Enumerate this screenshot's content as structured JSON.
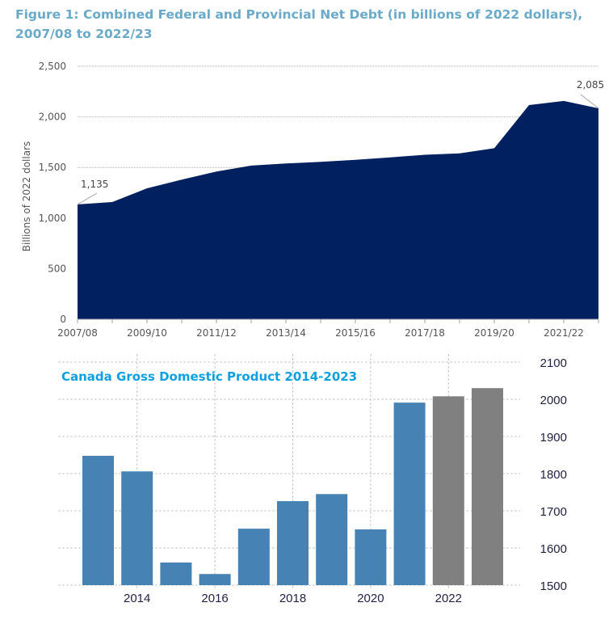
{
  "chart_data": [
    {
      "type": "area",
      "title": "Figure 1: Combined Federal and Provincial Net Debt (in billions of 2022 dollars), 2007/08 to 2022/23",
      "xlabel": "",
      "ylabel": "Billions of 2022 dollars",
      "ylim": [
        0,
        2500
      ],
      "yticks": [
        0,
        500,
        1000,
        1500,
        2000,
        2500
      ],
      "ytick_labels": [
        "0",
        "500",
        "1,000",
        "1,500",
        "2,000",
        "2,500"
      ],
      "x": [
        "2007/08",
        "2008/09",
        "2009/10",
        "2010/11",
        "2011/12",
        "2012/13",
        "2013/14",
        "2014/15",
        "2015/16",
        "2016/17",
        "2017/18",
        "2018/19",
        "2019/20",
        "2020/21",
        "2021/22",
        "2022/23"
      ],
      "xtick_labels": [
        "2007/08",
        "2009/10",
        "2011/12",
        "2013/14",
        "2015/16",
        "2017/18",
        "2019/20",
        "2021/22"
      ],
      "values": [
        1135,
        1158,
        1294,
        1380,
        1460,
        1518,
        1540,
        1555,
        1575,
        1600,
        1625,
        1640,
        1690,
        2117,
        2157,
        2085
      ],
      "annotations": [
        {
          "label": "1,135",
          "x": "2007/08",
          "value": 1135
        },
        {
          "label": "2,085",
          "x": "2022/23",
          "value": 2085
        }
      ],
      "color": "#002060",
      "grid": true
    },
    {
      "type": "bar",
      "title": "Canada Gross Domestic Product 2014-2023",
      "xlabel": "",
      "ylabel": "",
      "ylim": [
        1500,
        2100
      ],
      "yaxis_side": "right",
      "yticks": [
        1500,
        1600,
        1700,
        1800,
        1900,
        2000,
        2100
      ],
      "ytick_labels": [
        "1500",
        "1600",
        "1700",
        "1800",
        "1900",
        "2000",
        "2100"
      ],
      "categories": [
        "2013",
        "2014",
        "2015",
        "2016",
        "2017",
        "2018",
        "2019",
        "2020",
        "2021",
        "2022",
        "2023"
      ],
      "xtick_labels": [
        "2014",
        "2016",
        "2018",
        "2020",
        "2022"
      ],
      "values": [
        1848,
        1806,
        1561,
        1530,
        1652,
        1726,
        1745,
        1650,
        1991,
        2008,
        2030
      ],
      "bar_colors": [
        "#4682b4",
        "#4682b4",
        "#4682b4",
        "#4682b4",
        "#4682b4",
        "#4682b4",
        "#4682b4",
        "#4682b4",
        "#4682b4",
        "#808080",
        "#808080"
      ],
      "grid": true
    }
  ]
}
